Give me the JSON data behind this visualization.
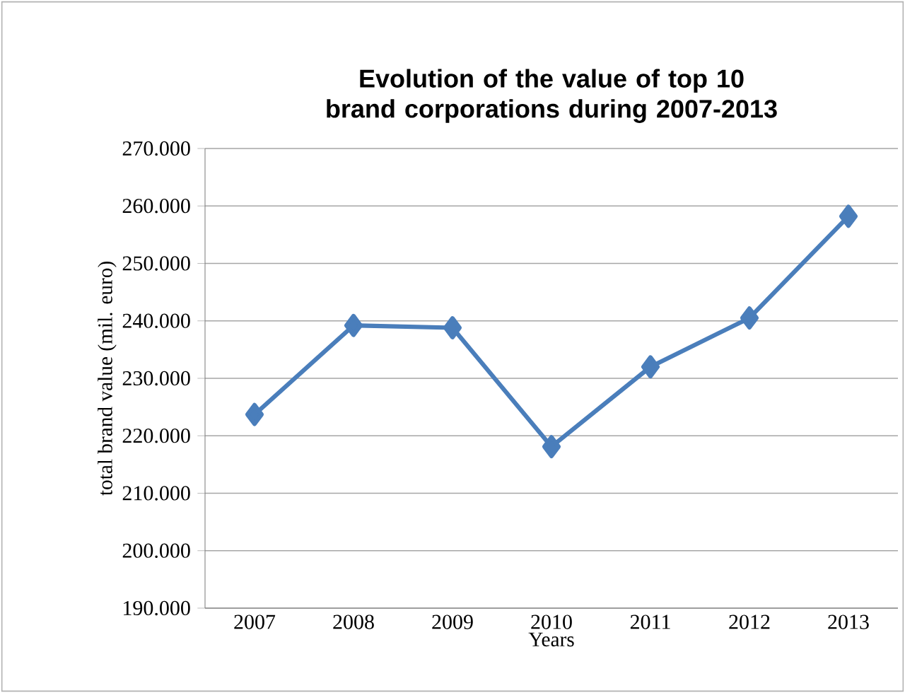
{
  "chart_data": {
    "type": "line",
    "title": "Evolution of the value of top 10 brand corporations during 2007-2013",
    "xlabel": "Years",
    "ylabel": "total brand value (mil. euro)",
    "categories": [
      "2007",
      "2008",
      "2009",
      "2010",
      "2011",
      "2012",
      "2013"
    ],
    "series": [
      {
        "color": "#4a7ebb",
        "values": [
          223700,
          239200,
          238800,
          218100,
          232000,
          240500,
          258200
        ]
      }
    ],
    "ylim": [
      190000,
      270000
    ],
    "yticks": [
      {
        "value": 190000,
        "label": "190.000"
      },
      {
        "value": 200000,
        "label": "200.000"
      },
      {
        "value": 210000,
        "label": "210.000"
      },
      {
        "value": 220000,
        "label": "220.000"
      },
      {
        "value": 230000,
        "label": "230.000"
      },
      {
        "value": 240000,
        "label": "240.000"
      },
      {
        "value": 250000,
        "label": "250.000"
      },
      {
        "value": 260000,
        "label": "260.000"
      },
      {
        "value": 270000,
        "label": "270.000"
      }
    ],
    "grid": "y",
    "marker": "diamond",
    "line_style": "solid"
  }
}
